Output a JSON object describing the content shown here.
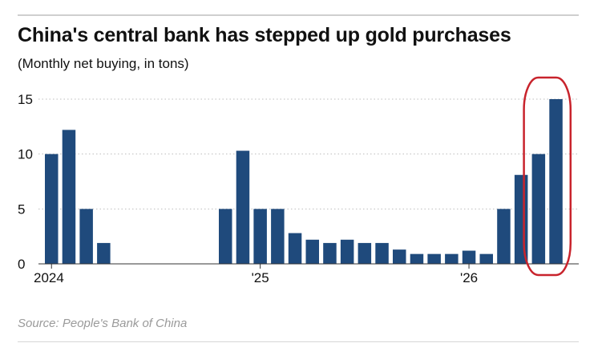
{
  "title": "China's central bank has stepped up gold purchases",
  "subtitle": "(Monthly net buying, in tons)",
  "source": "Source: People's Bank of China",
  "colors": {
    "bar": "#1f4a7c",
    "highlight": "#c8232c",
    "grid": "#bdbdbd",
    "text": "#111111"
  },
  "chart_data": {
    "type": "bar",
    "title": "China's central bank has stepped up gold purchases",
    "subtitle": "(Monthly net buying, in tons)",
    "ylim": [
      0,
      15
    ],
    "yticks": [
      0,
      5,
      10,
      15
    ],
    "xtick_labels": [
      {
        "label": "2024",
        "index": 0
      },
      {
        "label": "'25",
        "index": 12
      },
      {
        "label": "'26",
        "index": 24
      }
    ],
    "grid": "horizontal dotted",
    "values": [
      10,
      12.2,
      5,
      1.9,
      null,
      null,
      null,
      null,
      null,
      null,
      5,
      10.3,
      5,
      5,
      2.8,
      2.2,
      1.9,
      2.2,
      1.9,
      1.9,
      1.3,
      0.9,
      0.9,
      0.9,
      1.2,
      0.9,
      5,
      8.1,
      10,
      15
    ],
    "highlight_last": 2
  }
}
